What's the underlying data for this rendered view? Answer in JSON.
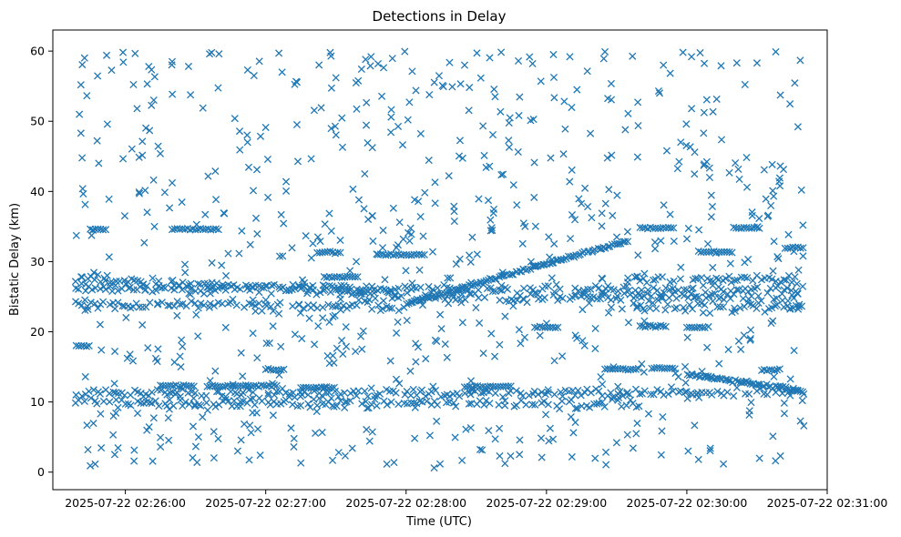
{
  "chart_data": {
    "type": "scatter",
    "title": "Detections in Delay",
    "xlabel": "Time (UTC)",
    "ylabel": "Bistatic Delay (km)",
    "marker": "x",
    "color": "#1f77b4",
    "grid": false,
    "legend": "none",
    "xlim": [
      "2025-07-22 02:25:29",
      "2025-07-22 02:31:00"
    ],
    "ylim": [
      -2.5,
      63
    ],
    "x_ticks": [
      "2025-07-22 02:26:00",
      "2025-07-22 02:27:00",
      "2025-07-22 02:28:00",
      "2025-07-22 02:29:00",
      "2025-07-22 02:30:00",
      "2025-07-22 02:31:00"
    ],
    "y_ticks": [
      0,
      10,
      20,
      30,
      40,
      50,
      60
    ],
    "data_span": [
      "2025-07-22 02:25:39",
      "2025-07-22 02:30:50"
    ],
    "tracks": [
      {
        "kind": "steady",
        "x_start": "2025-07-22 02:25:39",
        "x_end": "2025-07-22 02:30:50",
        "y_start": 26.2,
        "y_end": 26.0
      },
      {
        "kind": "steady",
        "x_start": "2025-07-22 02:25:39",
        "x_end": "2025-07-22 02:28:00",
        "y_start": 27.5,
        "y_end": 25.5
      },
      {
        "kind": "steady",
        "x_start": "2025-07-22 02:25:39",
        "x_end": "2025-07-22 02:28:00",
        "y_start": 24.0,
        "y_end": 23.5
      },
      {
        "kind": "steady",
        "x_start": "2025-07-22 02:25:39",
        "x_end": "2025-07-22 02:30:50",
        "y_start": 11.2,
        "y_end": 11.4
      },
      {
        "kind": "steady",
        "x_start": "2025-07-22 02:25:39",
        "x_end": "2025-07-22 02:29:40",
        "y_start": 10.0,
        "y_end": 9.6
      },
      {
        "kind": "steady",
        "x_start": "2025-07-22 02:27:40",
        "x_end": "2025-07-22 02:30:50",
        "y_start": 24.8,
        "y_end": 25.0
      },
      {
        "kind": "rising",
        "x_start": "2025-07-22 02:28:00",
        "x_end": "2025-07-22 02:29:35",
        "y_start": 24.0,
        "y_end": 33.0
      },
      {
        "kind": "falling",
        "x_start": "2025-07-22 02:30:00",
        "x_end": "2025-07-22 02:30:50",
        "y_start": 14.0,
        "y_end": 11.5
      },
      {
        "kind": "steady",
        "x_start": "2025-07-22 02:29:35",
        "x_end": "2025-07-22 02:30:50",
        "y_start": 27.5,
        "y_end": 27.5
      },
      {
        "kind": "steady",
        "x_start": "2025-07-22 02:29:35",
        "x_end": "2025-07-22 02:30:50",
        "y_start": 23.5,
        "y_end": 23.5
      }
    ],
    "segments": [
      {
        "x_start": "2025-07-22 02:25:39",
        "x_end": "2025-07-22 02:25:45",
        "y": 18.0
      },
      {
        "x_start": "2025-07-22 02:25:45",
        "x_end": "2025-07-22 02:25:52",
        "y": 34.6
      },
      {
        "x_start": "2025-07-22 02:26:15",
        "x_end": "2025-07-22 02:26:30",
        "y": 12.3
      },
      {
        "x_start": "2025-07-22 02:26:20",
        "x_end": "2025-07-22 02:26:40",
        "y": 34.6
      },
      {
        "x_start": "2025-07-22 02:26:35",
        "x_end": "2025-07-22 02:27:05",
        "y": 12.3
      },
      {
        "x_start": "2025-07-22 02:27:00",
        "x_end": "2025-07-22 02:27:08",
        "y": 14.6
      },
      {
        "x_start": "2025-07-22 02:27:15",
        "x_end": "2025-07-22 02:27:30",
        "y": 12.0
      },
      {
        "x_start": "2025-07-22 02:27:22",
        "x_end": "2025-07-22 02:27:32",
        "y": 31.3
      },
      {
        "x_start": "2025-07-22 02:27:25",
        "x_end": "2025-07-22 02:27:40",
        "y": 27.8
      },
      {
        "x_start": "2025-07-22 02:27:48",
        "x_end": "2025-07-22 02:28:08",
        "y": 31.0
      },
      {
        "x_start": "2025-07-22 02:28:25",
        "x_end": "2025-07-22 02:28:45",
        "y": 12.2
      },
      {
        "x_start": "2025-07-22 02:28:55",
        "x_end": "2025-07-22 02:29:05",
        "y": 20.6
      },
      {
        "x_start": "2025-07-22 02:29:25",
        "x_end": "2025-07-22 02:29:40",
        "y": 14.7
      },
      {
        "x_start": "2025-07-22 02:29:40",
        "x_end": "2025-07-22 02:29:55",
        "y": 34.8
      },
      {
        "x_start": "2025-07-22 02:29:40",
        "x_end": "2025-07-22 02:29:52",
        "y": 20.8
      },
      {
        "x_start": "2025-07-22 02:29:45",
        "x_end": "2025-07-22 02:29:55",
        "y": 14.8
      },
      {
        "x_start": "2025-07-22 02:30:00",
        "x_end": "2025-07-22 02:30:08",
        "y": 20.6
      },
      {
        "x_start": "2025-07-22 02:30:05",
        "x_end": "2025-07-22 02:30:20",
        "y": 31.4
      },
      {
        "x_start": "2025-07-22 02:30:20",
        "x_end": "2025-07-22 02:30:32",
        "y": 34.8
      },
      {
        "x_start": "2025-07-22 02:30:32",
        "x_end": "2025-07-22 02:30:40",
        "y": 14.6
      },
      {
        "x_start": "2025-07-22 02:30:42",
        "x_end": "2025-07-22 02:30:50",
        "y": 32.0
      }
    ],
    "scattered_points": [
      {
        "x": "2025-07-22 02:25:41",
        "y": 48.3
      },
      {
        "x": "2025-07-22 02:25:41",
        "y": 55.2
      },
      {
        "x": "2025-07-22 02:25:44",
        "y": 3.2
      },
      {
        "x": "2025-07-22 02:25:45",
        "y": 0.9
      },
      {
        "x": "2025-07-22 02:25:52",
        "y": 59.4
      },
      {
        "x": "2025-07-22 02:25:53",
        "y": 38.9
      },
      {
        "x": "2025-07-22 02:26:05",
        "y": 51.8
      },
      {
        "x": "2025-07-22 02:26:10",
        "y": 57.8
      },
      {
        "x": "2025-07-22 02:26:15",
        "y": 3.6
      },
      {
        "x": "2025-07-22 02:26:20",
        "y": 58.5
      },
      {
        "x": "2025-07-22 02:26:36",
        "y": 59.6
      },
      {
        "x": "2025-07-22 02:26:40",
        "y": 59.6
      },
      {
        "x": "2025-07-22 02:26:48",
        "y": 3.0
      },
      {
        "x": "2025-07-22 02:26:55",
        "y": 56.5
      },
      {
        "x": "2025-07-22 02:27:07",
        "y": 57.0
      },
      {
        "x": "2025-07-22 02:27:12",
        "y": 3.6
      },
      {
        "x": "2025-07-22 02:27:15",
        "y": 1.3
      },
      {
        "x": "2025-07-22 02:27:30",
        "y": 56.2
      },
      {
        "x": "2025-07-22 02:27:37",
        "y": 3.4
      },
      {
        "x": "2025-07-22 02:27:45",
        "y": 59.2
      },
      {
        "x": "2025-07-22 02:27:48",
        "y": 58.2
      },
      {
        "x": "2025-07-22 02:28:12",
        "y": 0.6
      },
      {
        "x": "2025-07-22 02:28:25",
        "y": 58.0
      },
      {
        "x": "2025-07-22 02:28:40",
        "y": 2.3
      },
      {
        "x": "2025-07-22 02:28:48",
        "y": 58.6
      },
      {
        "x": "2025-07-22 02:28:58",
        "y": 2.1
      },
      {
        "x": "2025-07-22 02:29:10",
        "y": 59.2
      },
      {
        "x": "2025-07-22 02:29:25",
        "y": 59.9
      },
      {
        "x": "2025-07-22 02:29:30",
        "y": 4.2
      },
      {
        "x": "2025-07-22 02:29:50",
        "y": 58.0
      },
      {
        "x": "2025-07-22 02:30:02",
        "y": 59.2
      },
      {
        "x": "2025-07-22 02:30:05",
        "y": 1.8
      },
      {
        "x": "2025-07-22 02:30:30",
        "y": 58.3
      },
      {
        "x": "2025-07-22 02:30:38",
        "y": 59.9
      },
      {
        "x": "2025-07-22 02:30:40",
        "y": 2.3
      },
      {
        "x": "2025-07-22 02:30:49",
        "y": 40.2
      },
      {
        "x": "2025-07-22 02:30:50",
        "y": 6.6
      }
    ]
  }
}
